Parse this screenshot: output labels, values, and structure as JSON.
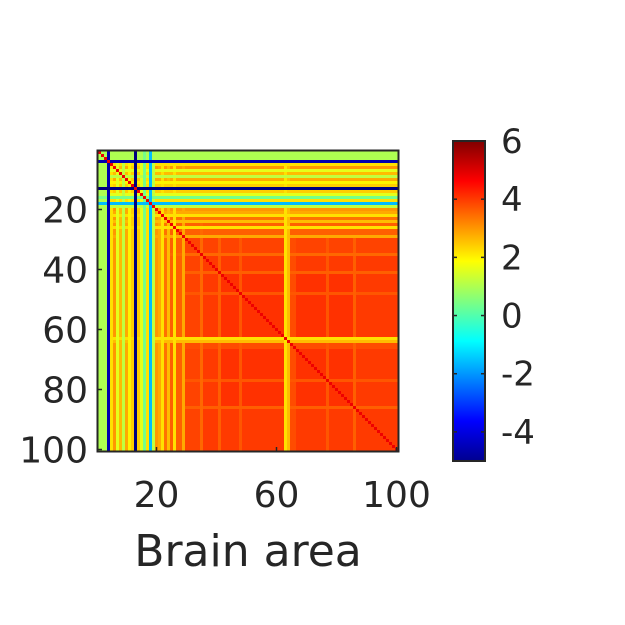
{
  "chart_data": {
    "type": "heatmap",
    "title": "",
    "xlabel": "Brain area",
    "ylabel": "",
    "rows": 100,
    "cols": 100,
    "x_ticks": [
      20,
      60,
      100
    ],
    "y_ticks": [
      20,
      40,
      60,
      80,
      100
    ],
    "colormap": "jet",
    "colorbar": {
      "min": -5,
      "max": 6,
      "ticks": [
        6,
        4,
        2,
        0,
        -2,
        -4
      ]
    },
    "area_profile": [
      {
        "from": 1,
        "to": 3,
        "value": 1.0
      },
      {
        "from": 4,
        "to": 4,
        "value": -4.5
      },
      {
        "from": 5,
        "to": 5,
        "value": 2.2
      },
      {
        "from": 6,
        "to": 6,
        "value": 3.0
      },
      {
        "from": 7,
        "to": 7,
        "value": 1.6
      },
      {
        "from": 8,
        "to": 8,
        "value": 2.6
      },
      {
        "from": 9,
        "to": 9,
        "value": 1.2
      },
      {
        "from": 10,
        "to": 10,
        "value": 2.8
      },
      {
        "from": 11,
        "to": 11,
        "value": 2.0
      },
      {
        "from": 12,
        "to": 12,
        "value": 2.4
      },
      {
        "from": 13,
        "to": 13,
        "value": -5.0
      },
      {
        "from": 14,
        "to": 14,
        "value": 2.4
      },
      {
        "from": 15,
        "to": 15,
        "value": 1.6
      },
      {
        "from": 16,
        "to": 16,
        "value": 0.4
      },
      {
        "from": 17,
        "to": 17,
        "value": 2.2
      },
      {
        "from": 18,
        "to": 18,
        "value": -1.6
      },
      {
        "from": 19,
        "to": 19,
        "value": 1.2
      },
      {
        "from": 20,
        "to": 20,
        "value": 3.0
      },
      {
        "from": 21,
        "to": 21,
        "value": 2.8
      },
      {
        "from": 22,
        "to": 22,
        "value": 2.2
      },
      {
        "from": 23,
        "to": 23,
        "value": 3.4
      },
      {
        "from": 24,
        "to": 24,
        "value": 2.6
      },
      {
        "from": 25,
        "to": 25,
        "value": 3.6
      },
      {
        "from": 26,
        "to": 26,
        "value": 2.2
      },
      {
        "from": 27,
        "to": 28,
        "value": 3.6
      },
      {
        "from": 29,
        "to": 29,
        "value": 2.8
      },
      {
        "from": 30,
        "to": 34,
        "value": 3.9
      },
      {
        "from": 35,
        "to": 35,
        "value": 3.5
      },
      {
        "from": 36,
        "to": 40,
        "value": 4.0
      },
      {
        "from": 41,
        "to": 41,
        "value": 3.6
      },
      {
        "from": 42,
        "to": 47,
        "value": 4.1
      },
      {
        "from": 48,
        "to": 48,
        "value": 3.7
      },
      {
        "from": 49,
        "to": 62,
        "value": 4.1
      },
      {
        "from": 63,
        "to": 63,
        "value": 2.2
      },
      {
        "from": 64,
        "to": 64,
        "value": 2.6
      },
      {
        "from": 65,
        "to": 66,
        "value": 3.8
      },
      {
        "from": 67,
        "to": 76,
        "value": 4.1
      },
      {
        "from": 77,
        "to": 77,
        "value": 3.7
      },
      {
        "from": 78,
        "to": 85,
        "value": 4.1
      },
      {
        "from": 86,
        "to": 86,
        "value": 3.6
      },
      {
        "from": 87,
        "to": 100,
        "value": 4.0
      }
    ],
    "diagonal_value": 4.8
  }
}
